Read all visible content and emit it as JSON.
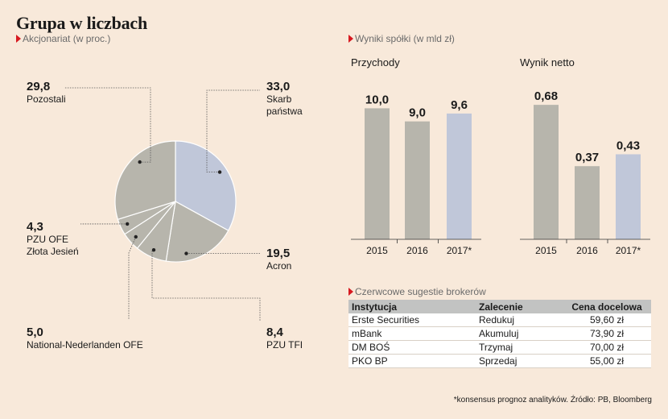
{
  "header": {
    "title": "Grupa w liczbach"
  },
  "sections": {
    "shareholders": "Akcjonariat (w proc.)",
    "results": "Wyniki spółki (w mld zł)",
    "brokers": "Czerwcowe sugestie brokerów"
  },
  "colors": {
    "background": "#f8e9da",
    "gray_bar": "#b7b5ac",
    "blue_bar": "#c0c7d9",
    "accent_triangle": "#d71920"
  },
  "chart_data": [
    {
      "type": "pie",
      "title": "Akcjonariat (w proc.)",
      "slices": [
        {
          "label": "Skarb państwa",
          "value": 33.0,
          "value_label": "33,0",
          "color": "#c0c7d9"
        },
        {
          "label": "Acron",
          "value": 19.5,
          "value_label": "19,5",
          "color": "#b7b5ac"
        },
        {
          "label": "PZU TFI",
          "value": 8.4,
          "value_label": "8,4",
          "color": "#b7b5ac"
        },
        {
          "label": "National-Nederlanden OFE",
          "value": 5.0,
          "value_label": "5,0",
          "color": "#b7b5ac"
        },
        {
          "label": "PZU OFE Złota Jesień",
          "value": 4.3,
          "value_label": "4,3",
          "color": "#b7b5ac"
        },
        {
          "label": "Pozostali",
          "value": 29.8,
          "value_label": "29,8",
          "color": "#b7b5ac"
        }
      ]
    },
    {
      "type": "bar",
      "title": "Przychody",
      "categories": [
        "2015",
        "2016",
        "2017*"
      ],
      "values": [
        10.0,
        9.0,
        9.6
      ],
      "value_labels": [
        "10,0",
        "9,0",
        "9,6"
      ],
      "colors": [
        "#b7b5ac",
        "#b7b5ac",
        "#c0c7d9"
      ],
      "ylim": [
        0,
        12.3
      ]
    },
    {
      "type": "bar",
      "title": "Wynik netto",
      "categories": [
        "2015",
        "2016",
        "2017*"
      ],
      "values": [
        0.68,
        0.37,
        0.43
      ],
      "value_labels": [
        "0,68",
        "0,37",
        "0,43"
      ],
      "colors": [
        "#b7b5ac",
        "#b7b5ac",
        "#c0c7d9"
      ],
      "ylim": [
        0,
        0.815
      ]
    }
  ],
  "pie_labels": {
    "skarb": {
      "value": "33,0",
      "line1": "Skarb",
      "line2": "państwa"
    },
    "acron": {
      "value": "19,5",
      "name": "Acron"
    },
    "pzutfi": {
      "value": "8,4",
      "name": "PZU TFI"
    },
    "nn": {
      "value": "5,0",
      "name": "National-Nederlanden OFE"
    },
    "pzuofe": {
      "value": "4,3",
      "line1": "PZU OFE",
      "line2": "Złota Jesień"
    },
    "pozostali": {
      "value": "29,8",
      "name": "Pozostali"
    }
  },
  "brokers_table": {
    "headers": [
      "Instytucja",
      "Zalecenie",
      "Cena docelowa"
    ],
    "rows": [
      [
        "Erste Securities",
        "Redukuj",
        "59,60 zł"
      ],
      [
        "mBank",
        "Akumuluj",
        "73,90 zł"
      ],
      [
        "DM BOŚ",
        "Trzymaj",
        "70,00 zł"
      ],
      [
        "PKO BP",
        "Sprzedaj",
        "55,00 zł"
      ]
    ]
  },
  "footnote": "*konsensus prognoz analityków. Źródło: PB, Bloomberg"
}
